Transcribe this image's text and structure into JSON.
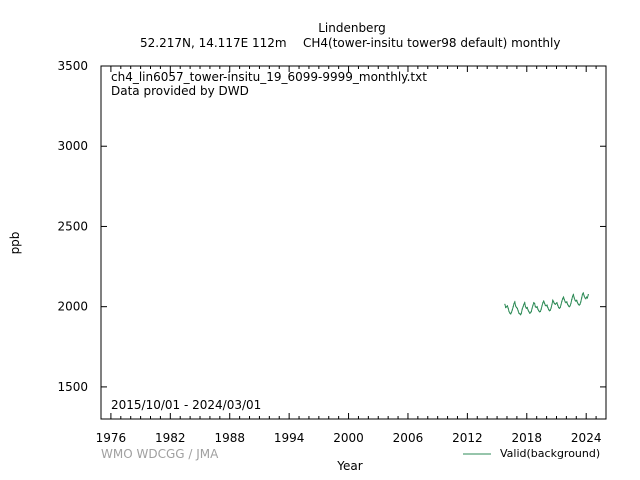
{
  "header": {
    "station": "Lindenberg",
    "location": "52.217N, 14.117E 112m",
    "parameter": "CH4(tower-insitu tower98 default) monthly"
  },
  "annotations": {
    "filename": "ch4_lin6057_tower-insitu_19_6099-9999_monthly.txt",
    "provider": "Data provided by DWD",
    "period": "2015/10/01 - 2024/03/01",
    "credit": "WMO WDCGG / JMA"
  },
  "axes": {
    "xlabel": "Year",
    "ylabel": "ppb"
  },
  "legend": {
    "label": "Valid(background)"
  },
  "colors": {
    "series": "#2e8b57",
    "credit": "#a0a0a0"
  },
  "chart_data": {
    "type": "line",
    "xlabel": "Year",
    "ylabel": "ppb",
    "xlim": [
      1975,
      2026
    ],
    "ylim": [
      1300,
      3500
    ],
    "xticks": [
      1976,
      1982,
      1988,
      1994,
      2000,
      2006,
      2012,
      2018,
      2024
    ],
    "yticks": [
      1500,
      2000,
      2500,
      3000,
      3500
    ],
    "grid": false,
    "legend_position": "bottom-right",
    "series": [
      {
        "name": "Valid(background)",
        "x": [
          "2015-10",
          "2015-11",
          "2015-12",
          "2016-01",
          "2016-02",
          "2016-03",
          "2016-04",
          "2016-05",
          "2016-06",
          "2016-07",
          "2016-08",
          "2016-09",
          "2016-10",
          "2016-11",
          "2016-12",
          "2017-01",
          "2017-02",
          "2017-03",
          "2017-04",
          "2017-05",
          "2017-06",
          "2017-07",
          "2017-08",
          "2017-09",
          "2017-10",
          "2017-11",
          "2017-12",
          "2018-01",
          "2018-02",
          "2018-03",
          "2018-04",
          "2018-05",
          "2018-06",
          "2018-07",
          "2018-08",
          "2018-09",
          "2018-10",
          "2018-11",
          "2018-12",
          "2019-01",
          "2019-02",
          "2019-03",
          "2019-04",
          "2019-05",
          "2019-06",
          "2019-07",
          "2019-08",
          "2019-09",
          "2019-10",
          "2019-11",
          "2019-12",
          "2020-01",
          "2020-02",
          "2020-03",
          "2020-04",
          "2020-05",
          "2020-06",
          "2020-07",
          "2020-08",
          "2020-09",
          "2020-10",
          "2020-11",
          "2020-12",
          "2021-01",
          "2021-02",
          "2021-03",
          "2021-04",
          "2021-05",
          "2021-06",
          "2021-07",
          "2021-08",
          "2021-09",
          "2021-10",
          "2021-11",
          "2021-12",
          "2022-01",
          "2022-02",
          "2022-03",
          "2022-04",
          "2022-05",
          "2022-06",
          "2022-07",
          "2022-08",
          "2022-09",
          "2022-10",
          "2022-11",
          "2022-12",
          "2023-01",
          "2023-02",
          "2023-03",
          "2023-04",
          "2023-05",
          "2023-06",
          "2023-07",
          "2023-08",
          "2023-09",
          "2023-10",
          "2023-11",
          "2023-12",
          "2024-01",
          "2024-02",
          "2024-03"
        ],
        "y": [
          2015,
          1995,
          2000,
          2005,
          1990,
          1970,
          1960,
          1955,
          1965,
          1980,
          2000,
          2020,
          2030,
          2005,
          1995,
          1990,
          1975,
          1960,
          1955,
          1950,
          1960,
          1985,
          2000,
          2015,
          2025,
          2000,
          1990,
          1995,
          1980,
          1970,
          1960,
          1962,
          1970,
          1990,
          2010,
          2025,
          2020,
          2000,
          1995,
          2000,
          1985,
          1975,
          1968,
          1970,
          1985,
          2005,
          2025,
          2035,
          2022,
          2008,
          2005,
          2010,
          1995,
          1982,
          1975,
          1978,
          1992,
          2015,
          2040,
          2030,
          2020,
          2015,
          2020,
          2025,
          2010,
          1995,
          1990,
          1995,
          2012,
          2035,
          2050,
          2060,
          2045,
          2030,
          2025,
          2030,
          2015,
          2005,
          2000,
          2005,
          2020,
          2045,
          2065,
          2075,
          2055,
          2040,
          2035,
          2040,
          2025,
          2015,
          2010,
          2015,
          2030,
          2055,
          2078,
          2085,
          2068,
          2055,
          2050,
          2060,
          2055,
          2075
        ]
      }
    ]
  }
}
